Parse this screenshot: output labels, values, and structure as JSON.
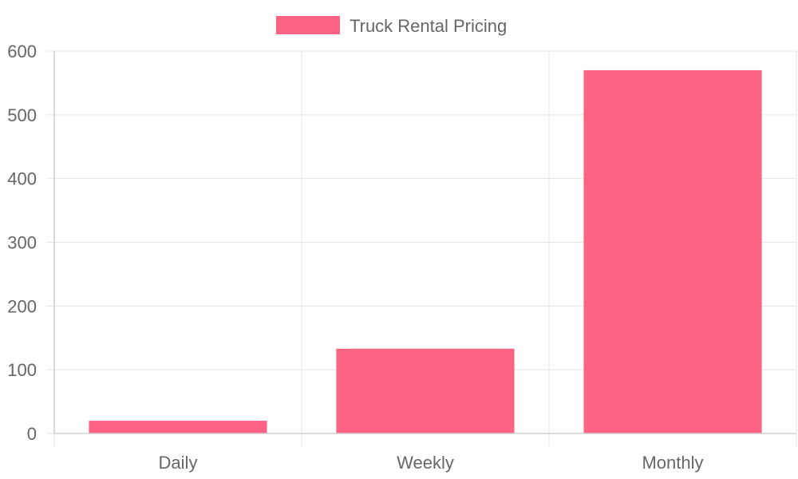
{
  "chart_data": {
    "type": "bar",
    "categories": [
      "Daily",
      "Weekly",
      "Monthly"
    ],
    "series": [
      {
        "name": "Truck Rental Pricing",
        "values": [
          20,
          133,
          570
        ],
        "color": "#ff6384"
      }
    ],
    "ylim": [
      0,
      600
    ],
    "yticks": [
      0,
      100,
      200,
      300,
      400,
      500,
      600
    ],
    "grid": true,
    "legend_position": "top-center"
  }
}
